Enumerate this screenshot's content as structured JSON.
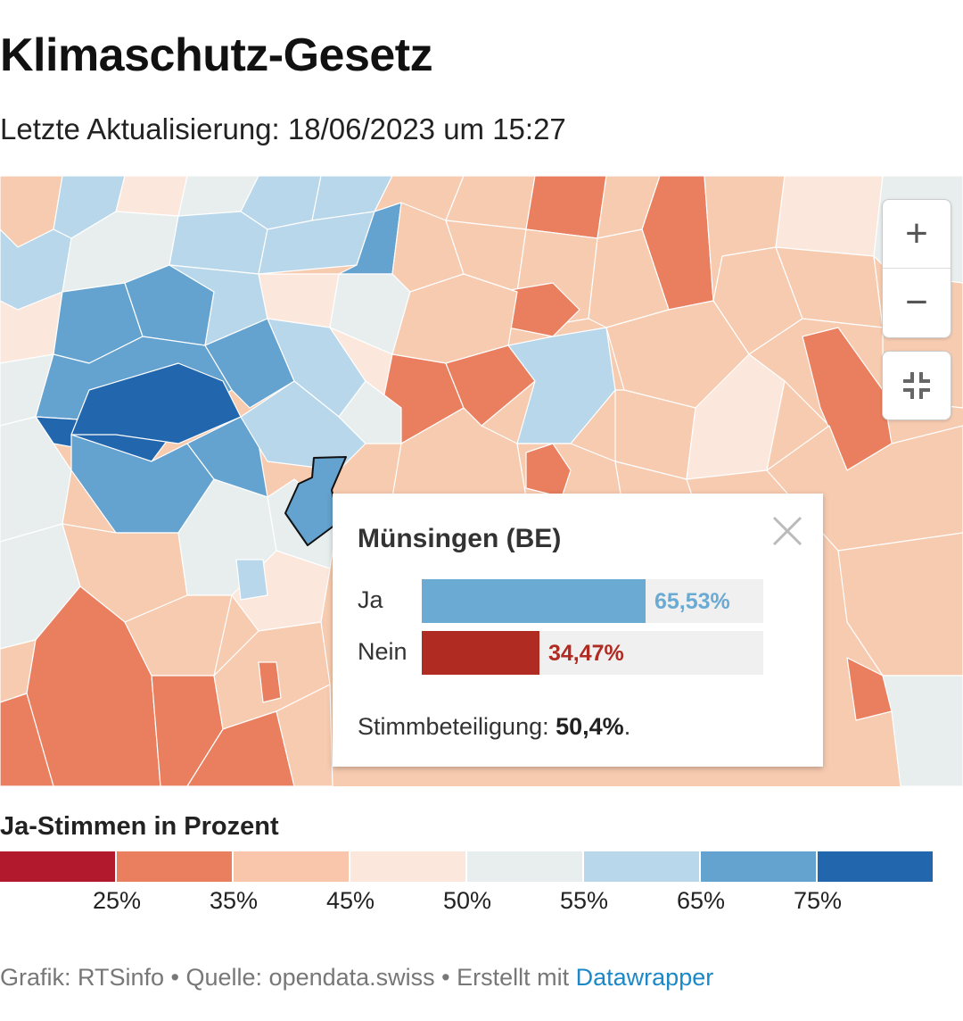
{
  "title": "Klimaschutz-Gesetz",
  "subtitle": "Letzte Aktualisierung: 18/06/2023 um 15:27",
  "map_controls": {
    "zoom_in": "+",
    "zoom_out": "−"
  },
  "tooltip": {
    "title": "Münsingen (BE)",
    "rows": [
      {
        "label": "Ja",
        "value_text": "65,53%",
        "value": 65.53,
        "color": "#6aaad3"
      },
      {
        "label": "Nein",
        "value_text": "34,47%",
        "value": 34.47,
        "color": "#b02b22"
      }
    ],
    "turnout_label": "Stimmbeteiligung:",
    "turnout_value": "50,4%",
    "turnout_suffix": "."
  },
  "legend": {
    "title": "Ja-Stimmen in Prozent",
    "colors": [
      "#b3192d",
      "#e97f5f",
      "#f9c5ab",
      "#fce7dc",
      "#e8eeee",
      "#b8d7ea",
      "#64a2cf",
      "#2266ae"
    ],
    "ticks": [
      "25%",
      "35%",
      "45%",
      "50%",
      "55%",
      "65%",
      "75%"
    ]
  },
  "footer": {
    "prefix": "Grafik: RTSinfo • Quelle: opendata.swiss • Erstellt mit ",
    "link": "Datawrapper"
  }
}
